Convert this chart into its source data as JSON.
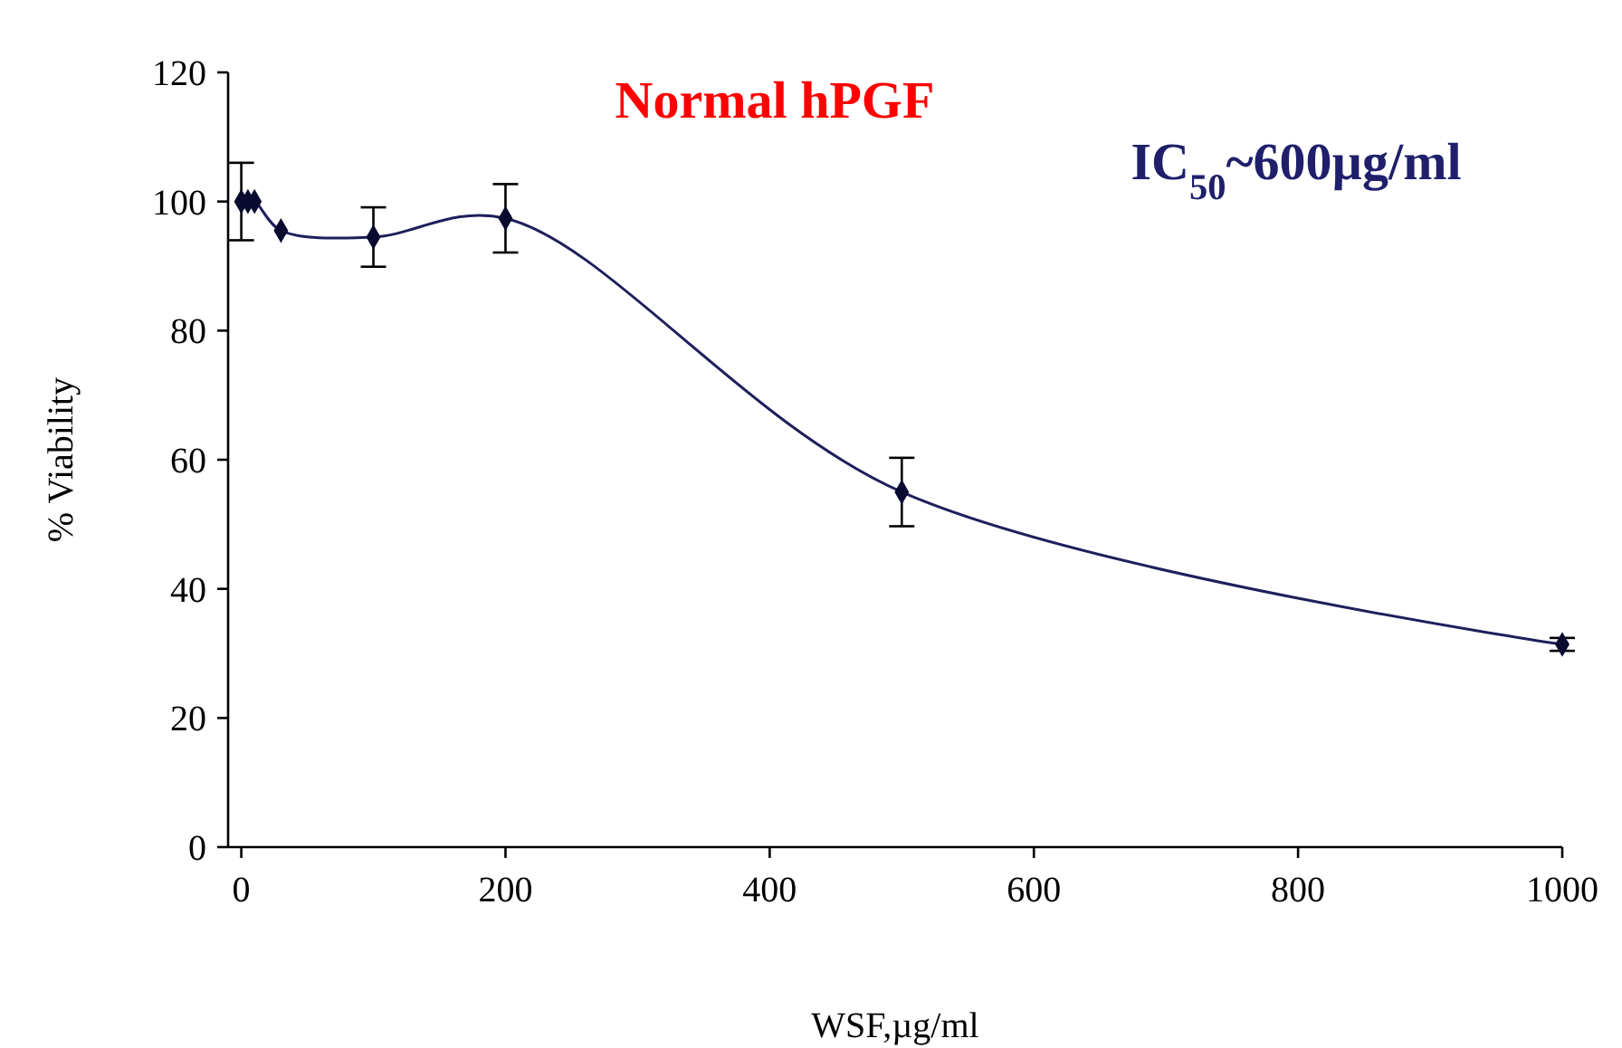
{
  "chart_data": {
    "type": "line",
    "title": "Normal hPGF",
    "xlabel": "WSF,µg/ml",
    "ylabel": "% Viability",
    "annotations": [
      "IC$_{50}$~600µg/ml"
    ],
    "x": [
      0,
      5,
      10,
      30,
      100,
      200,
      500,
      1000
    ],
    "series": [
      {
        "color": "#1f1f5c",
        "values": [
          100,
          100,
          100,
          95.5,
          94.5,
          97.4,
          55,
          31.4
        ],
        "errors": [
          6,
          null,
          null,
          null,
          4.6,
          5.3,
          5.3,
          1
        ]
      }
    ],
    "xlim": [
      -10,
      1000
    ],
    "xticks": [
      0,
      200,
      400,
      600,
      800,
      1000
    ],
    "ylim": [
      0,
      120
    ],
    "yticks": [
      0,
      20,
      40,
      60,
      80,
      100,
      120
    ],
    "grid": false,
    "marker": "diamond",
    "line_style": "solid"
  }
}
